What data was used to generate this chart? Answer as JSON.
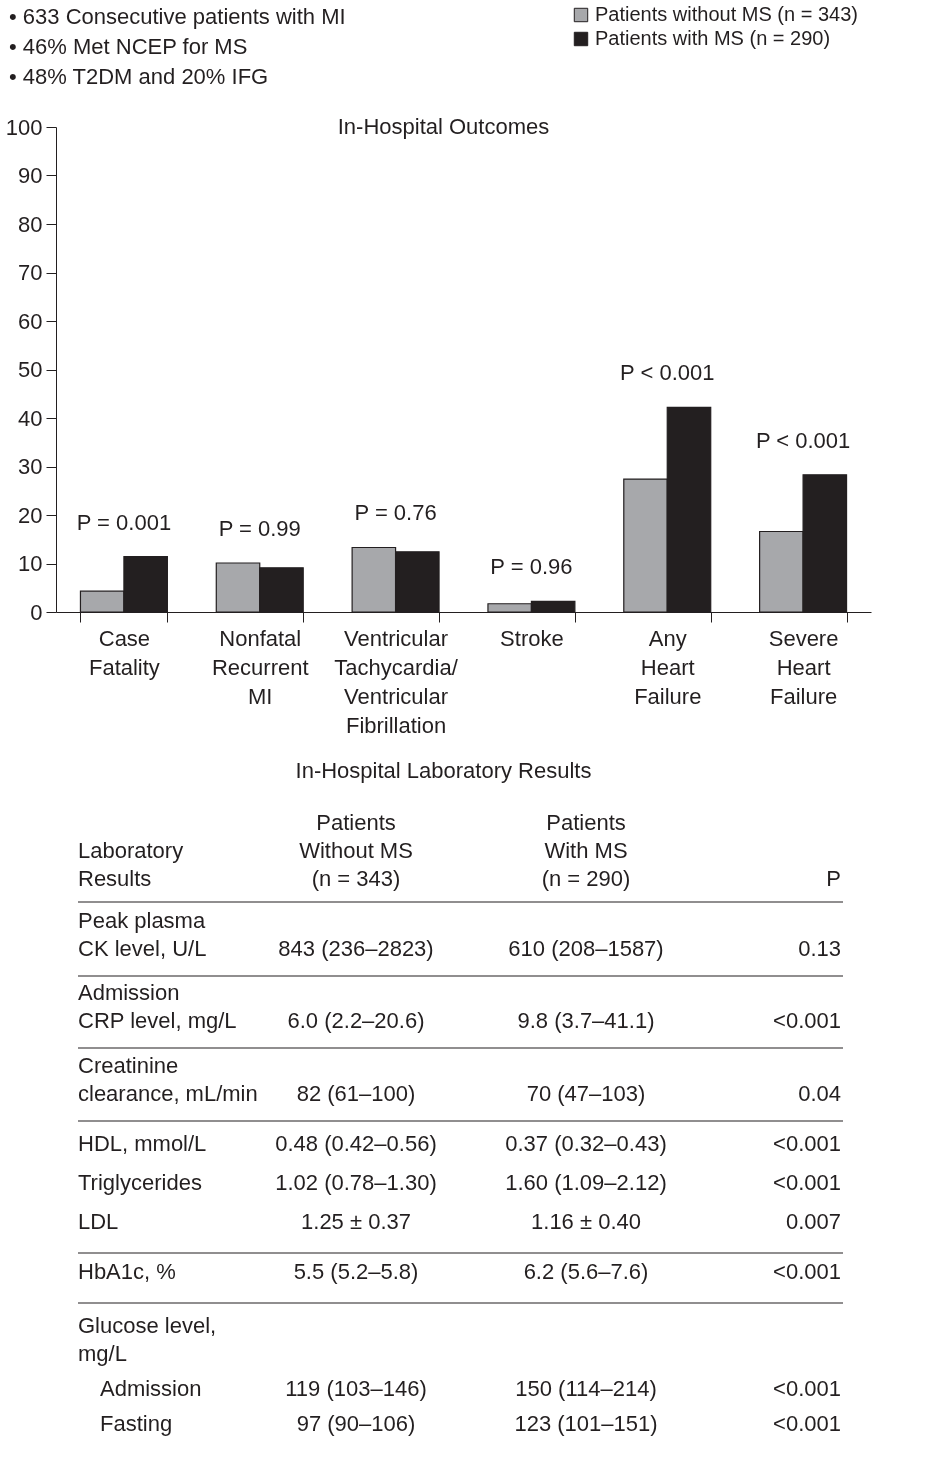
{
  "chart_data": [
    {
      "type": "bar",
      "title": "In-Hospital Outcomes",
      "categories": [
        "Case Fatality",
        "Nonfatal Recurrent MI",
        "Ventricular Tachycardia/ Ventricular Fibrillation",
        "Stroke",
        "Any Heart Failure",
        "Severe Heart Failure"
      ],
      "series": [
        {
          "name": "Patients without MS (n = 343)",
          "color": "#a7a8ab",
          "values": [
            4.3,
            10.1,
            13.3,
            1.7,
            27.4,
            16.6
          ]
        },
        {
          "name": "Patients with MS (n = 290)",
          "color": "#231f20",
          "values": [
            11.4,
            9.1,
            12.4,
            2.2,
            42.2,
            28.3
          ]
        }
      ],
      "ylim": [
        0,
        100
      ],
      "yticks": [
        0,
        10,
        20,
        30,
        40,
        50,
        60,
        70,
        80,
        90,
        100
      ],
      "grid": false,
      "legend": "top right",
      "annotations": [
        "• 633 Consecutive patients with MI",
        "• 46% Met NCEP for MS",
        "• 48% T2DM and 20% IFG",
        "P = 0.001",
        "P = 0.99",
        "P = 0.76",
        "P = 0.96",
        "P < 0.001",
        "P < 0.001"
      ]
    },
    {
      "type": "other",
      "title": "In-Hospital Laboratory Results",
      "categories": [
        "Laboratory\nResults",
        "Patients\nWithout MS\n(n = 343)",
        "Patients\nWith MS\n(n = 290)",
        "P"
      ],
      "y_categories": [
        "Peak plasma\nCK level, U/L",
        "Admission\nCRP level, mg/L",
        "Creatinine\nclearance, mL/min",
        "HDL, mmol/L",
        "Triglycerides",
        "LDL",
        "HbA1c, %",
        "Glucose level,\nmg/L",
        "Admission",
        "Fasting"
      ],
      "cell_labels": [
        [
          "843 (236–2823)",
          "610 (208–1587)",
          "0.13"
        ],
        [
          "6.0 (2.2–20.6)",
          "9.8 (3.7–41.1)",
          "<0.001"
        ],
        [
          "82 (61–100)",
          "70 (47–103)",
          "0.04"
        ],
        [
          "0.48 (0.42–0.56)",
          "0.37 (0.32–0.43)",
          "<0.001"
        ],
        [
          "1.02 (0.78–1.30)",
          "1.60 (1.09–2.12)",
          "<0.001"
        ],
        [
          "1.25 ± 0.37",
          "1.16 ± 0.40",
          "0.007"
        ],
        [
          "5.5 (5.2–5.8)",
          "6.2 (5.6–7.6)",
          "<0.001"
        ],
        [
          null,
          null,
          null
        ],
        [
          "119 (103–146)",
          "150 (114–214)",
          "<0.001"
        ],
        [
          "97 (90–106)",
          "123 (101–151)",
          "<0.001"
        ]
      ]
    }
  ]
}
